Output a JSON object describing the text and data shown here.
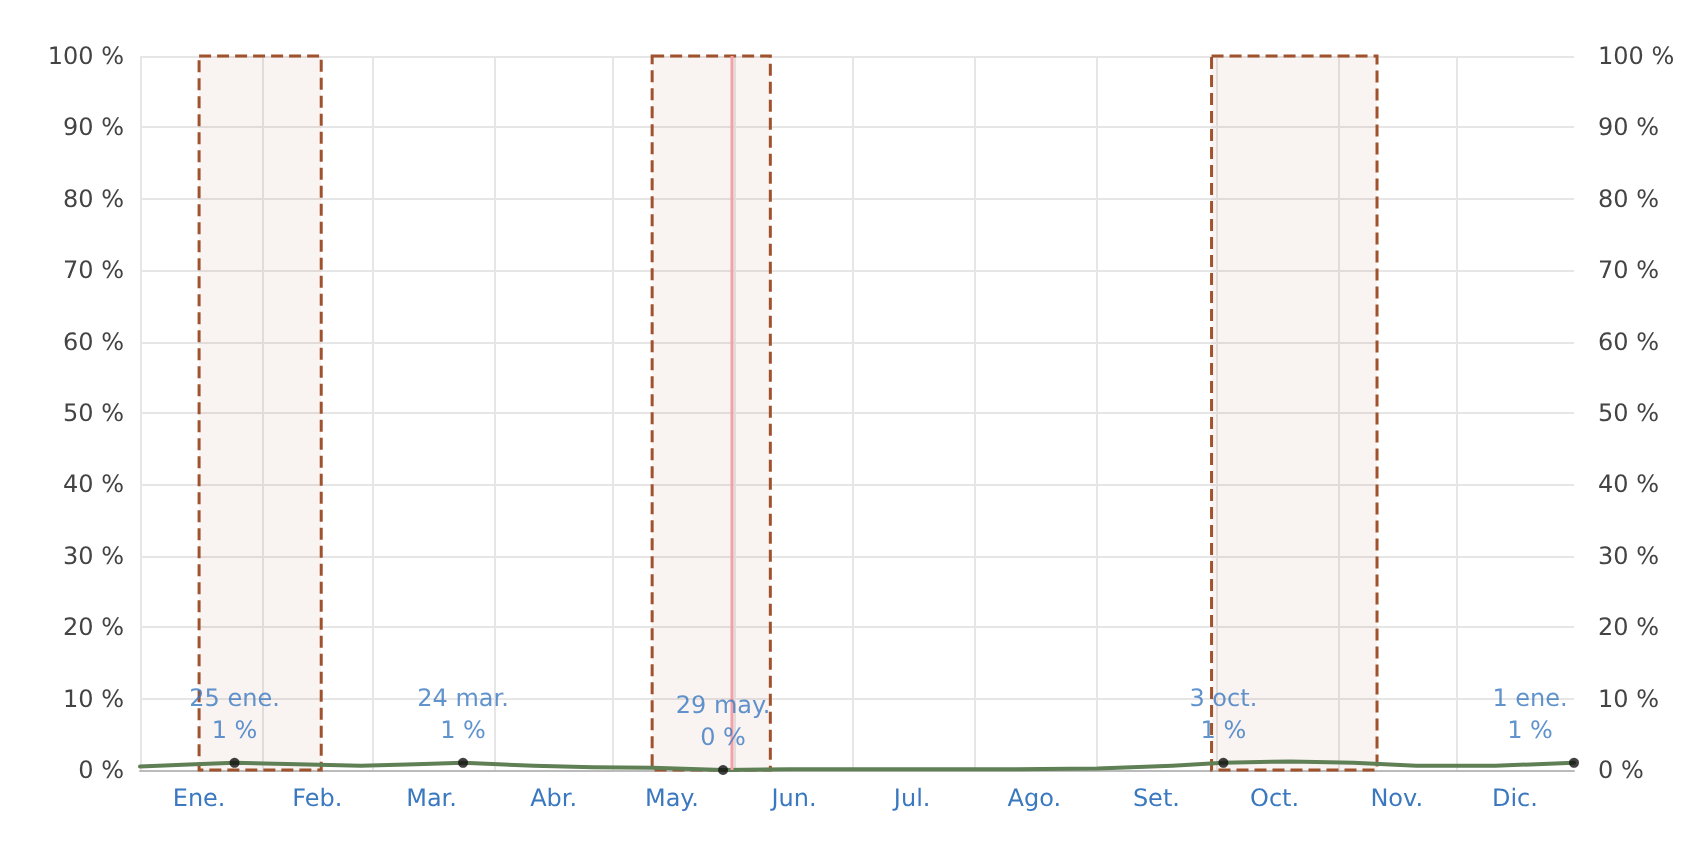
{
  "chart_data": {
    "type": "line",
    "xlim": [
      "--01-01",
      "--12-31"
    ],
    "xticks": [
      {
        "value": "--01-01",
        "label": null
      },
      {
        "value": "--01-16",
        "label": "Ene."
      },
      {
        "value": "--02-01",
        "label": null
      },
      {
        "value": "--02-15",
        "label": "Feb."
      },
      {
        "value": "--03-01",
        "label": null
      },
      {
        "value": "--03-16",
        "label": "Mar."
      },
      {
        "value": "--04-01",
        "label": null
      },
      {
        "value": "--04-16",
        "label": "Abr."
      },
      {
        "value": "--05-01",
        "label": null
      },
      {
        "value": "--05-16",
        "label": "May."
      },
      {
        "value": "--06-01",
        "label": null
      },
      {
        "value": "--06-16",
        "label": "Jun."
      },
      {
        "value": "--07-01",
        "label": null
      },
      {
        "value": "--07-16",
        "label": "Jul."
      },
      {
        "value": "--08-01",
        "label": null
      },
      {
        "value": "--08-16",
        "label": "Ago."
      },
      {
        "value": "--09-01",
        "label": null
      },
      {
        "value": "--09-16",
        "label": "Set."
      },
      {
        "value": "--10-01",
        "label": null
      },
      {
        "value": "--10-16",
        "label": "Oct."
      },
      {
        "value": "--11-01",
        "label": null
      },
      {
        "value": "--11-16",
        "label": "Nov."
      },
      {
        "value": "--12-01",
        "label": null
      },
      {
        "value": "--12-16",
        "label": "Dic."
      }
    ],
    "ylim": [
      0,
      100
    ],
    "yticks": [
      {
        "value": 0,
        "label": "0 %"
      },
      {
        "value": 10,
        "label": "10 %"
      },
      {
        "value": 20,
        "label": "20 %"
      },
      {
        "value": 30,
        "label": "30 %"
      },
      {
        "value": 40,
        "label": "40 %"
      },
      {
        "value": 50,
        "label": "50 %"
      },
      {
        "value": 60,
        "label": "60 %"
      },
      {
        "value": 70,
        "label": "70 %"
      },
      {
        "value": 80,
        "label": "80 %"
      },
      {
        "value": 90,
        "label": "90 %"
      },
      {
        "value": 100,
        "label": "100 %"
      }
    ],
    "y2lim": [
      0,
      100
    ],
    "y2ticks": [
      {
        "value": 0,
        "label": "0 %"
      },
      {
        "value": 10,
        "label": "10 %"
      },
      {
        "value": 20,
        "label": "20 %"
      },
      {
        "value": 30,
        "label": "30 %"
      },
      {
        "value": 40,
        "label": "40 %"
      },
      {
        "value": 50,
        "label": "50 %"
      },
      {
        "value": 60,
        "label": "60 %"
      },
      {
        "value": 70,
        "label": "70 %"
      },
      {
        "value": 80,
        "label": "80 %"
      },
      {
        "value": 90,
        "label": "90 %"
      },
      {
        "value": 100,
        "label": "100 %"
      }
    ],
    "series": [
      {
        "color": "#5f7f55",
        "x": [
          "--01-01",
          "--01-15",
          "--01-25",
          "--02-10",
          "--02-26",
          "--03-12",
          "--03-24",
          "--04-11",
          "--04-26",
          "--05-11",
          "--05-29",
          "--06-15",
          "--07-10",
          "--08-09",
          "--09-01",
          "--09-20",
          "--10-03",
          "--10-20",
          "--11-05",
          "--11-21",
          "--12-11",
          "--12-31"
        ],
        "values": [
          0.5,
          0.8,
          1,
          0.8,
          0.6,
          0.8,
          1,
          0.6,
          0.4,
          0.3,
          0,
          0.1,
          0.1,
          0.1,
          0.2,
          0.6,
          1,
          1.2,
          1,
          0.6,
          0.6,
          1
        ]
      }
    ],
    "annotations": [
      {
        "text": "25 ene.\n1 %",
        "x": "--01-25",
        "y": 1
      },
      {
        "text": "24 mar.\n1 %",
        "x": "--03-24",
        "y": 1
      },
      {
        "text": "29 may.\n0 %",
        "x": "--05-29",
        "y": 0
      },
      {
        "text": "3 oct.\n1 %",
        "x": "--10-03",
        "y": 1
      },
      {
        "text": "1 ene.\n1 %",
        "x": "--12-31",
        "y": 1
      }
    ],
    "bands": [
      {
        "axis": "x",
        "from": "--01-16",
        "to": "--02-16",
        "color": "#a0522d"
      },
      {
        "axis": "x",
        "from": "--05-11",
        "to": "--06-10",
        "color": "#a0522d"
      },
      {
        "axis": "x",
        "from": "--09-30",
        "to": "--11-11",
        "color": "#a0522d"
      }
    ],
    "ref_lines": [
      {
        "axis": "x",
        "value": "--05-31",
        "color": "#f4a0a8"
      }
    ],
    "grid": true,
    "marker": "none",
    "line_style": "solid"
  }
}
